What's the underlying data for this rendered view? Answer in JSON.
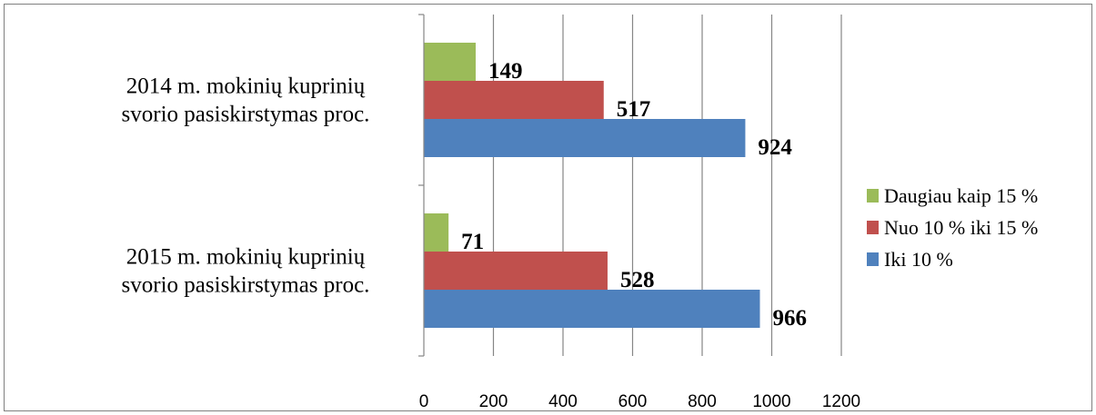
{
  "chart_data": {
    "type": "bar",
    "orientation": "horizontal",
    "categories": [
      "2014 m. mokinių kuprinių svorio pasiskirstymas proc.",
      "2015 m. mokinių kuprinių svorio pasiskirstymas proc."
    ],
    "category_lines": [
      [
        "2014 m. mokinių kuprinių",
        "svorio pasiskirstymas proc."
      ],
      [
        "2015 m. mokinių kuprinių",
        "svorio pasiskirstymas proc."
      ]
    ],
    "series": [
      {
        "name": "Iki 10 %",
        "color": "#4f81bd",
        "values": [
          924,
          966
        ]
      },
      {
        "name": "Nuo 10 % iki 15 %",
        "color": "#c0504d",
        "values": [
          517,
          528
        ]
      },
      {
        "name": "Daugiau kaip 15 %",
        "color": "#9bbb59",
        "values": [
          149,
          71
        ]
      }
    ],
    "xlim": [
      0,
      1200
    ],
    "xticks": [
      0,
      200,
      400,
      600,
      800,
      1000,
      1200
    ],
    "grid": true,
    "data_labels": true,
    "legend_position": "right",
    "legend_order": [
      "Daugiau kaip 15 %",
      "Nuo 10 % iki 15 %",
      "Iki 10 %"
    ]
  }
}
